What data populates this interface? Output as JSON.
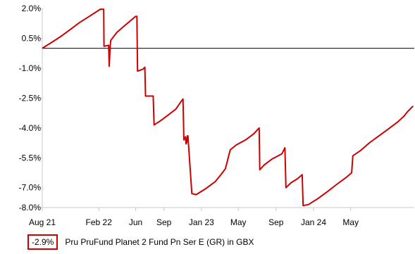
{
  "chart_data": {
    "type": "line",
    "title": "",
    "xlabel": "",
    "ylabel": "",
    "grid": false,
    "legend_position": "bottom-left",
    "ylim": [
      -8.0,
      2.0
    ],
    "y_ticks": [
      "2.0%",
      "0.5%",
      "-1.0%",
      "-2.5%",
      "-4.0%",
      "-5.5%",
      "-7.0%",
      "-8.0%"
    ],
    "x_ticks": [
      "Aug 21",
      "Feb 22",
      "Jun",
      "Sep",
      "Jan 23",
      "May",
      "Sep",
      "Jan 24",
      "May"
    ],
    "baseline": 0.0,
    "series": [
      {
        "name": "Pru PruFund Planet 2 Fund Pn Ser E (GR) in GBX",
        "color": "#cc0000",
        "last_value_label": "-2.9%",
        "points": [
          [
            "2021-08-01",
            0.0
          ],
          [
            "2021-09-01",
            0.3
          ],
          [
            "2021-10-01",
            0.6
          ],
          [
            "2021-11-01",
            0.95
          ],
          [
            "2021-12-01",
            1.3
          ],
          [
            "2022-01-01",
            1.6
          ],
          [
            "2022-02-06",
            1.96
          ],
          [
            "2022-02-17",
            1.96
          ],
          [
            "2022-02-18",
            0.1
          ],
          [
            "2022-03-05",
            0.15
          ],
          [
            "2022-03-07",
            -0.9
          ],
          [
            "2022-03-10",
            0.1
          ],
          [
            "2022-03-12",
            0.4
          ],
          [
            "2022-04-01",
            0.8
          ],
          [
            "2022-05-01",
            1.2
          ],
          [
            "2022-06-01",
            1.6
          ],
          [
            "2022-06-05",
            1.6
          ],
          [
            "2022-06-07",
            -1.15
          ],
          [
            "2022-06-25",
            -1.05
          ],
          [
            "2022-07-01",
            -0.95
          ],
          [
            "2022-07-03",
            -2.4
          ],
          [
            "2022-07-28",
            -2.4
          ],
          [
            "2022-07-31",
            -3.85
          ],
          [
            "2022-08-20",
            -3.65
          ],
          [
            "2022-09-15",
            -3.35
          ],
          [
            "2022-10-10",
            -3.05
          ],
          [
            "2022-10-28",
            -2.65
          ],
          [
            "2022-11-02",
            -2.55
          ],
          [
            "2022-11-05",
            -4.6
          ],
          [
            "2022-11-08",
            -4.5
          ],
          [
            "2022-11-10",
            -4.45
          ],
          [
            "2022-11-12",
            -4.8
          ],
          [
            "2022-11-14",
            -4.75
          ],
          [
            "2022-11-16",
            -4.4
          ],
          [
            "2022-11-18",
            -4.4
          ],
          [
            "2022-12-01",
            -7.3
          ],
          [
            "2022-12-15",
            -7.35
          ],
          [
            "2023-01-15",
            -7.05
          ],
          [
            "2023-02-15",
            -6.7
          ],
          [
            "2023-03-08",
            -6.3
          ],
          [
            "2023-03-20",
            -6.05
          ],
          [
            "2023-04-05",
            -5.1
          ],
          [
            "2023-04-25",
            -4.85
          ],
          [
            "2023-05-25",
            -4.6
          ],
          [
            "2023-06-20",
            -4.3
          ],
          [
            "2023-07-08",
            -4.0
          ],
          [
            "2023-07-10",
            -6.1
          ],
          [
            "2023-07-25",
            -5.85
          ],
          [
            "2023-08-20",
            -5.55
          ],
          [
            "2023-09-20",
            -5.3
          ],
          [
            "2023-09-30",
            -5.0
          ],
          [
            "2023-10-03",
            -7.0
          ],
          [
            "2023-10-20",
            -6.75
          ],
          [
            "2023-11-10",
            -6.55
          ],
          [
            "2023-11-25",
            -6.35
          ],
          [
            "2023-11-28",
            -7.9
          ],
          [
            "2023-12-15",
            -7.85
          ],
          [
            "2024-01-15",
            -7.55
          ],
          [
            "2024-02-15",
            -7.2
          ],
          [
            "2024-03-15",
            -6.85
          ],
          [
            "2024-04-15",
            -6.5
          ],
          [
            "2024-05-04",
            -6.25
          ],
          [
            "2024-05-08",
            -5.4
          ],
          [
            "2024-06-01",
            -5.15
          ],
          [
            "2024-07-01",
            -4.75
          ],
          [
            "2024-08-01",
            -4.4
          ],
          [
            "2024-09-01",
            -4.05
          ],
          [
            "2024-10-01",
            -3.7
          ],
          [
            "2024-10-22",
            -3.4
          ],
          [
            "2024-11-01",
            -3.2
          ],
          [
            "2024-11-20",
            -2.9
          ]
        ]
      }
    ]
  },
  "colors": {
    "line": "#cc0000",
    "axis": "#c8c8c8",
    "baseline": "#000000"
  }
}
